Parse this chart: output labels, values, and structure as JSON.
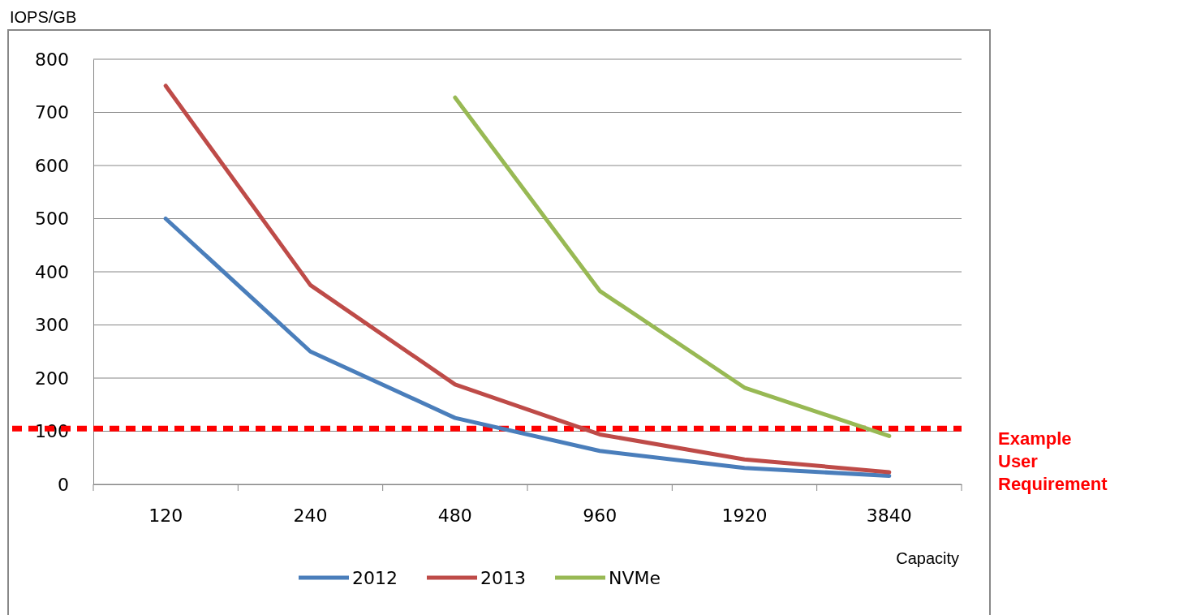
{
  "chart_data": {
    "type": "line",
    "categories": [
      "120",
      "240",
      "480",
      "960",
      "1920",
      "3840"
    ],
    "series": [
      {
        "name": "2012",
        "color": "#4a7ebb",
        "values": [
          500,
          250,
          125,
          63,
          31,
          16
        ]
      },
      {
        "name": "2013",
        "color": "#be4b48",
        "values": [
          750,
          375,
          188,
          94,
          47,
          23
        ]
      },
      {
        "name": "NVMe",
        "color": "#98b954",
        "values": [
          null,
          null,
          728,
          364,
          182,
          91
        ]
      }
    ],
    "ylabel": "IOPS/GB",
    "xlabel": "Capacity",
    "ylim": [
      0,
      800
    ],
    "yticks": [
      0,
      100,
      200,
      300,
      400,
      500,
      600,
      700,
      800
    ],
    "grid": "y",
    "legend": "bottom",
    "marker": "none",
    "line_style": "solid",
    "ref_lines": [
      {
        "axis": "y",
        "value": 105,
        "label": "Example User Requirement",
        "color": "#ff0000",
        "line_style": "dashed"
      }
    ]
  }
}
